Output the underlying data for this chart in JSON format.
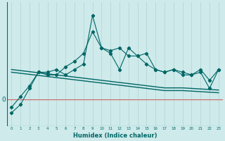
{
  "bg_color": "#ceeaea",
  "line_color": "#006666",
  "grid_color": "#b8d8d8",
  "zero_line_color": "#cc6666",
  "xlabel": "Humidex (Indice chaleur)",
  "x_ticks": [
    0,
    1,
    2,
    3,
    4,
    5,
    6,
    7,
    8,
    9,
    10,
    11,
    12,
    13,
    14,
    15,
    16,
    17,
    18,
    19,
    20,
    21,
    22,
    23
  ],
  "series1_y": [
    -1.5,
    0.5,
    2.5,
    5.0,
    4.5,
    4.5,
    6.0,
    7.0,
    8.5,
    12.5,
    9.5,
    9.0,
    9.5,
    8.0,
    8.0,
    6.5,
    5.5,
    5.0,
    5.5,
    5.0,
    4.5,
    5.5,
    3.5,
    5.5
  ],
  "series2_y": [
    -2.5,
    -1.0,
    2.0,
    5.0,
    5.0,
    5.5,
    4.5,
    5.5,
    6.5,
    15.5,
    9.5,
    8.5,
    5.5,
    9.5,
    8.0,
    8.5,
    5.5,
    5.0,
    5.5,
    4.5,
    4.5,
    5.0,
    2.0,
    5.5
  ],
  "series3_y": [
    5.5,
    5.3,
    5.1,
    4.9,
    4.7,
    4.5,
    4.3,
    4.1,
    3.9,
    3.7,
    3.5,
    3.3,
    3.1,
    2.9,
    2.7,
    2.5,
    2.3,
    2.1,
    2.1,
    2.1,
    2.0,
    1.9,
    1.8,
    1.7
  ],
  "series4_y": [
    5.0,
    4.8,
    4.6,
    4.4,
    4.2,
    4.0,
    3.8,
    3.6,
    3.4,
    3.2,
    3.0,
    2.8,
    2.6,
    2.4,
    2.2,
    2.0,
    1.8,
    1.6,
    1.6,
    1.6,
    1.5,
    1.4,
    1.3,
    1.2
  ],
  "ymin": -5.0,
  "ymax": 18.0,
  "y_zero": 0
}
